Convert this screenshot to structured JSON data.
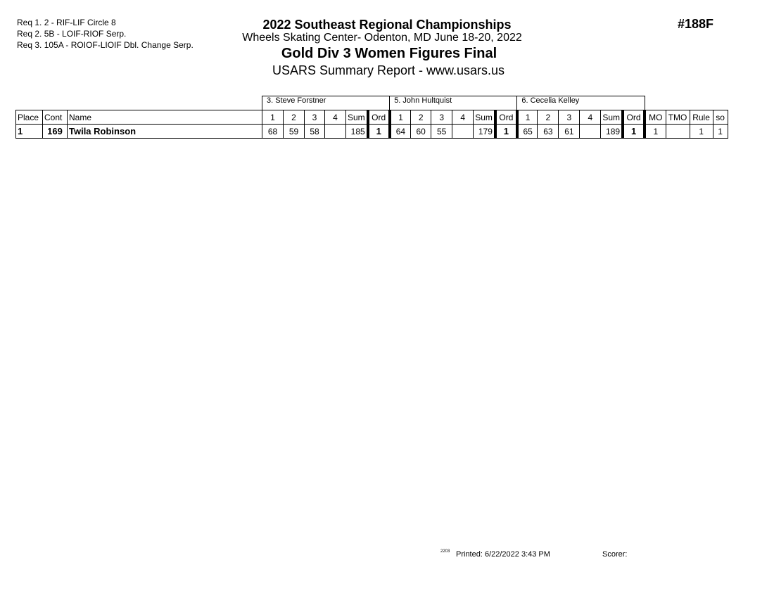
{
  "requirements": [
    "Req  1.  2 - RIF-LIF Circle 8",
    "Req  2.  5B - LOIF-RIOF Serp.",
    "Req  3.  105A  - ROIOF-LIOIF Dbl. Change Serp."
  ],
  "header": {
    "title": "2022 Southeast Regional Championships",
    "venue": "Wheels Skating Center- Odenton, MD  June 18-20, 2022",
    "event": "Gold Div 3 Women Figures Final",
    "report": "USARS Summary Report - www.usars.us",
    "event_number": "#188F"
  },
  "table": {
    "judges": [
      "3.  Steve Forstner",
      "5.  John Hultquist",
      "6.  Cecelia Kelley"
    ],
    "columns": {
      "place": "Place",
      "cont": "Cont",
      "name": "Name",
      "judge_cols": [
        "1",
        "2",
        "3",
        "4",
        "Sum",
        "Ord"
      ],
      "mo": "MO",
      "tmo": "TMO",
      "rule": "Rule",
      "so": "so"
    },
    "rows": [
      {
        "place": "1",
        "cont": "169",
        "name": "Twila Robinson",
        "scores": [
          [
            "68",
            "59",
            "58",
            "",
            "185",
            "1"
          ],
          [
            "64",
            "60",
            "55",
            "",
            "179",
            "1"
          ],
          [
            "65",
            "63",
            "61",
            "",
            "189",
            "1"
          ]
        ],
        "mo": "1",
        "tmo": "",
        "rule": "1",
        "so": "1"
      }
    ]
  },
  "footer": {
    "code": "2203",
    "printed": "Printed:  6/22/2022  3:43 PM",
    "scorer": "Scorer:"
  }
}
